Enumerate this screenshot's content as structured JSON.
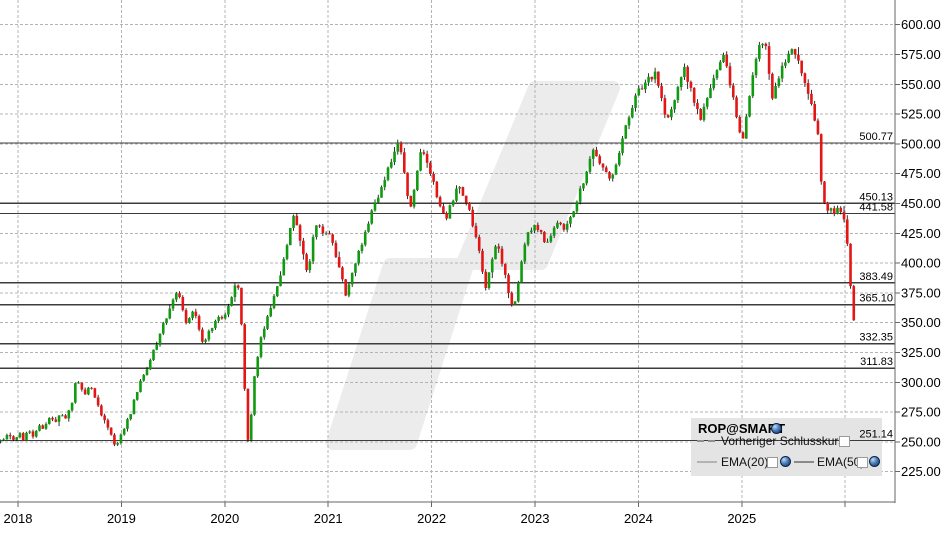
{
  "chart_data": {
    "type": "candlestick",
    "title": "ROP@SMART",
    "x_ticks": [
      {
        "year": 2018,
        "label": "2018"
      },
      {
        "year": 2019,
        "label": "2019"
      },
      {
        "year": 2020,
        "label": "2020"
      },
      {
        "year": 2021,
        "label": "2021"
      },
      {
        "year": 2022,
        "label": "2022"
      },
      {
        "year": 2023,
        "label": "2023"
      },
      {
        "year": 2024,
        "label": "2024"
      },
      {
        "year": 2025,
        "label": "2025"
      }
    ],
    "unlabeled_gridline_year": 2026,
    "y_ticks": [
      {
        "value": 225,
        "label": "225.00"
      },
      {
        "value": 250,
        "label": "250.00"
      },
      {
        "value": 275,
        "label": "275.00"
      },
      {
        "value": 300,
        "label": "300.00"
      },
      {
        "value": 325,
        "label": "325.00"
      },
      {
        "value": 350,
        "label": "350.00"
      },
      {
        "value": 375,
        "label": "375.00"
      },
      {
        "value": 400,
        "label": "400.00"
      },
      {
        "value": 425,
        "label": "425.00"
      },
      {
        "value": 450,
        "label": "450.00"
      },
      {
        "value": 475,
        "label": "475.00"
      },
      {
        "value": 500,
        "label": "500.00"
      },
      {
        "value": 525,
        "label": "525.00"
      },
      {
        "value": 550,
        "label": "550.00"
      },
      {
        "value": 575,
        "label": "575.00"
      },
      {
        "value": 600,
        "label": "600.00"
      }
    ],
    "ylim": [
      200,
      620
    ],
    "price_lines": [
      {
        "value": 500.77,
        "label": "500.77"
      },
      {
        "value": 450.13,
        "label": "450.13"
      },
      {
        "value": 441.58,
        "label": "441.58"
      },
      {
        "value": 383.49,
        "label": "383.49"
      },
      {
        "value": 365.1,
        "label": "365.10"
      },
      {
        "value": 332.35,
        "label": "332.35"
      },
      {
        "value": 311.83,
        "label": "311.83"
      },
      {
        "value": 251.14,
        "label": "251.14"
      }
    ],
    "series_anchors": [
      [
        2017.83,
        251
      ],
      [
        2017.9,
        255
      ],
      [
        2017.96,
        253
      ],
      [
        2018.02,
        258
      ],
      [
        2018.06,
        250
      ],
      [
        2018.1,
        262
      ],
      [
        2018.15,
        255
      ],
      [
        2018.2,
        266
      ],
      [
        2018.25,
        261
      ],
      [
        2018.3,
        270
      ],
      [
        2018.36,
        266
      ],
      [
        2018.42,
        274
      ],
      [
        2018.47,
        270
      ],
      [
        2018.52,
        282
      ],
      [
        2018.57,
        305
      ],
      [
        2018.61,
        296
      ],
      [
        2018.65,
        288
      ],
      [
        2018.69,
        298
      ],
      [
        2018.73,
        290
      ],
      [
        2018.77,
        281
      ],
      [
        2018.83,
        269
      ],
      [
        2018.88,
        260
      ],
      [
        2018.94,
        246
      ],
      [
        2019.0,
        256
      ],
      [
        2019.08,
        272
      ],
      [
        2019.17,
        298
      ],
      [
        2019.25,
        312
      ],
      [
        2019.33,
        330
      ],
      [
        2019.42,
        352
      ],
      [
        2019.5,
        368
      ],
      [
        2019.54,
        378
      ],
      [
        2019.58,
        366
      ],
      [
        2019.63,
        346
      ],
      [
        2019.69,
        360
      ],
      [
        2019.73,
        352
      ],
      [
        2019.79,
        333
      ],
      [
        2019.85,
        344
      ],
      [
        2019.92,
        352
      ],
      [
        2020.0,
        357
      ],
      [
        2020.06,
        372
      ],
      [
        2020.12,
        386
      ],
      [
        2020.16,
        352
      ],
      [
        2020.2,
        280
      ],
      [
        2020.23,
        244
      ],
      [
        2020.28,
        300
      ],
      [
        2020.33,
        330
      ],
      [
        2020.4,
        352
      ],
      [
        2020.46,
        368
      ],
      [
        2020.52,
        384
      ],
      [
        2020.57,
        402
      ],
      [
        2020.62,
        422
      ],
      [
        2020.66,
        443
      ],
      [
        2020.7,
        430
      ],
      [
        2020.74,
        414
      ],
      [
        2020.79,
        396
      ],
      [
        2020.83,
        402
      ],
      [
        2020.86,
        424
      ],
      [
        2020.9,
        432
      ],
      [
        2020.95,
        424
      ],
      [
        2021.0,
        428
      ],
      [
        2021.06,
        410
      ],
      [
        2021.12,
        392
      ],
      [
        2021.17,
        372
      ],
      [
        2021.23,
        390
      ],
      [
        2021.3,
        410
      ],
      [
        2021.38,
        433
      ],
      [
        2021.45,
        448
      ],
      [
        2021.52,
        462
      ],
      [
        2021.58,
        478
      ],
      [
        2021.64,
        494
      ],
      [
        2021.68,
        502
      ],
      [
        2021.72,
        486
      ],
      [
        2021.76,
        462
      ],
      [
        2021.8,
        446
      ],
      [
        2021.85,
        470
      ],
      [
        2021.9,
        494
      ],
      [
        2021.95,
        488
      ],
      [
        2022.02,
        468
      ],
      [
        2022.08,
        448
      ],
      [
        2022.14,
        436
      ],
      [
        2022.2,
        452
      ],
      [
        2022.25,
        466
      ],
      [
        2022.31,
        456
      ],
      [
        2022.37,
        442
      ],
      [
        2022.43,
        424
      ],
      [
        2022.48,
        400
      ],
      [
        2022.52,
        380
      ],
      [
        2022.57,
        400
      ],
      [
        2022.62,
        416
      ],
      [
        2022.67,
        406
      ],
      [
        2022.71,
        390
      ],
      [
        2022.75,
        372
      ],
      [
        2022.79,
        360
      ],
      [
        2022.84,
        384
      ],
      [
        2022.88,
        408
      ],
      [
        2022.93,
        424
      ],
      [
        2022.98,
        431
      ],
      [
        2023.04,
        427
      ],
      [
        2023.1,
        417
      ],
      [
        2023.16,
        426
      ],
      [
        2023.22,
        433
      ],
      [
        2023.28,
        427
      ],
      [
        2023.34,
        438
      ],
      [
        2023.4,
        452
      ],
      [
        2023.46,
        466
      ],
      [
        2023.52,
        482
      ],
      [
        2023.56,
        493
      ],
      [
        2023.62,
        485
      ],
      [
        2023.68,
        477
      ],
      [
        2023.73,
        471
      ],
      [
        2023.79,
        483
      ],
      [
        2023.85,
        506
      ],
      [
        2023.92,
        528
      ],
      [
        2023.98,
        542
      ],
      [
        2024.05,
        549
      ],
      [
        2024.11,
        555
      ],
      [
        2024.16,
        558
      ],
      [
        2024.21,
        541
      ],
      [
        2024.27,
        517
      ],
      [
        2024.33,
        534
      ],
      [
        2024.39,
        551
      ],
      [
        2024.44,
        564
      ],
      [
        2024.5,
        547
      ],
      [
        2024.56,
        531
      ],
      [
        2024.6,
        517
      ],
      [
        2024.66,
        537
      ],
      [
        2024.72,
        553
      ],
      [
        2024.78,
        568
      ],
      [
        2024.82,
        574
      ],
      [
        2024.87,
        557
      ],
      [
        2024.92,
        538
      ],
      [
        2024.97,
        514
      ],
      [
        2025.02,
        504
      ],
      [
        2025.07,
        540
      ],
      [
        2025.12,
        565
      ],
      [
        2025.17,
        580
      ],
      [
        2025.22,
        590
      ],
      [
        2025.25,
        570
      ],
      [
        2025.3,
        532
      ],
      [
        2025.33,
        548
      ],
      [
        2025.38,
        562
      ],
      [
        2025.43,
        572
      ],
      [
        2025.48,
        578
      ],
      [
        2025.53,
        574
      ],
      [
        2025.57,
        565
      ],
      [
        2025.61,
        552
      ],
      [
        2025.65,
        540
      ],
      [
        2025.69,
        528
      ],
      [
        2025.73,
        512
      ],
      [
        2025.76,
        482
      ],
      [
        2025.78,
        452
      ],
      [
        2025.81,
        446
      ],
      [
        2025.84,
        444
      ],
      [
        2025.87,
        447
      ],
      [
        2025.9,
        443
      ],
      [
        2025.93,
        446
      ],
      [
        2025.96,
        443
      ],
      [
        2025.99,
        438
      ],
      [
        2026.01,
        424
      ],
      [
        2026.03,
        404
      ],
      [
        2026.05,
        382
      ],
      [
        2026.07,
        362
      ],
      [
        2026.09,
        348
      ]
    ],
    "colors": {
      "up": "#0f9a0f",
      "down": "#e31515",
      "wick": "#000000",
      "grid": "#b4b4b4",
      "axis": "#666666",
      "price_line": "#3c3c3c",
      "watermark": "#ececec",
      "legend_bg": "#e4e4e4"
    }
  },
  "legend": {
    "title": "ROP@SMART",
    "prev_close": "Vorheriger Schlusskurs",
    "ema20": "EMA(20)",
    "ema50": "EMA(50)"
  }
}
